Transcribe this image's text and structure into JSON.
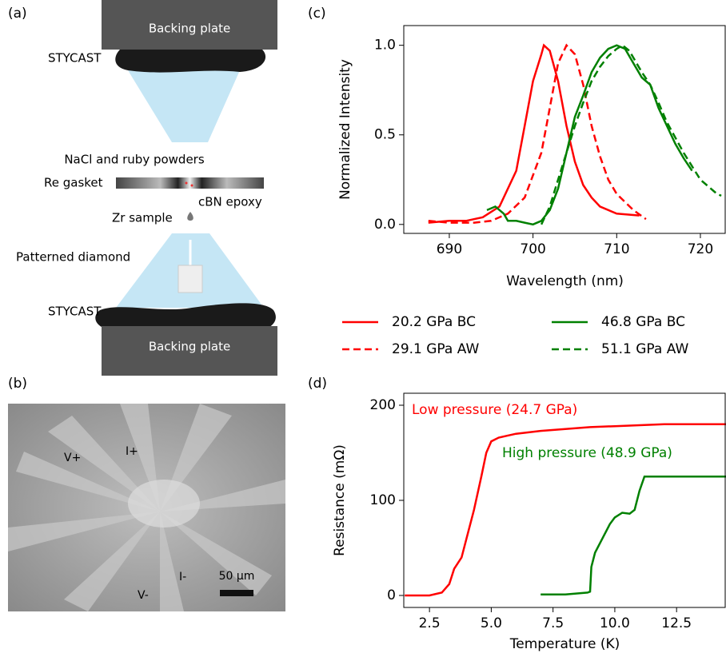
{
  "panel_a": {
    "label": "(a)",
    "top_plate": "Backing plate",
    "top_stycast": "STYCAST",
    "powders": "NaCl and ruby powders",
    "gasket": "Re gasket",
    "epoxy": "cBN epoxy",
    "sample": "Zr sample",
    "diamond": "Patterned diamond",
    "bottom_stycast": "STYCAST",
    "bottom_plate": "Backing plate"
  },
  "panel_b": {
    "label": "(b)",
    "leads": [
      "V+",
      "I+",
      "V-",
      "I-"
    ],
    "scale_bar": "50 μm"
  },
  "chart_data": [
    {
      "type": "line",
      "label": "(c)",
      "x_label": "Wavelength (nm)",
      "y_label": "Normalized Intensity",
      "xlim": [
        684.56,
        723.06
      ],
      "ylim": [
        -0.05,
        1.11
      ],
      "xticks": [
        690,
        700,
        710,
        720
      ],
      "yticks": [
        {
          "value": 0,
          "label": "0.0"
        },
        0.5,
        {
          "value": 1,
          "label": "1.0"
        }
      ],
      "legend": "below",
      "series": [
        {
          "name": "20.2 GPa BC",
          "color": "#ff0000",
          "dash": false,
          "x": [
            687.5,
            690,
            692,
            694,
            696,
            698,
            699,
            700,
            701,
            701.3,
            702,
            703,
            704,
            705,
            706,
            707,
            708,
            710,
            712.7
          ],
          "values": [
            0.01,
            0.02,
            0.02,
            0.04,
            0.1,
            0.3,
            0.55,
            0.8,
            0.95,
            1.0,
            0.97,
            0.8,
            0.55,
            0.35,
            0.22,
            0.15,
            0.1,
            0.06,
            0.05
          ]
        },
        {
          "name": "29.1 GPa AW",
          "color": "#ff0000",
          "dash": true,
          "x": [
            687.5,
            690,
            693,
            695,
            697,
            699,
            701,
            702,
            703,
            704,
            705,
            706,
            707,
            708,
            709,
            710,
            712,
            713.5
          ],
          "values": [
            0.02,
            0.01,
            0.01,
            0.02,
            0.06,
            0.15,
            0.4,
            0.65,
            0.9,
            1.0,
            0.95,
            0.78,
            0.55,
            0.38,
            0.25,
            0.17,
            0.08,
            0.03
          ]
        },
        {
          "name": "46.8 GPa BC",
          "color": "#008000",
          "dash": false,
          "x": [
            694.5,
            695.5,
            696.5,
            697,
            698,
            699,
            700,
            701,
            702,
            703,
            704,
            705,
            706,
            707,
            708,
            709,
            710,
            711,
            712,
            713,
            714,
            715,
            716,
            717,
            718,
            719
          ],
          "values": [
            0.08,
            0.1,
            0.06,
            0.02,
            0.02,
            0.01,
            0.0,
            0.02,
            0.08,
            0.2,
            0.4,
            0.6,
            0.72,
            0.85,
            0.93,
            0.98,
            1.0,
            0.98,
            0.9,
            0.82,
            0.78,
            0.65,
            0.55,
            0.45,
            0.37,
            0.3
          ]
        },
        {
          "name": "51.1 GPa AW",
          "color": "#008000",
          "dash": true,
          "x": [
            701,
            702,
            703,
            704,
            705,
            706,
            707,
            708,
            709,
            710,
            710.7,
            711.5,
            712,
            713,
            714,
            715,
            716,
            718,
            720,
            722,
            722.5
          ],
          "values": [
            0.0,
            0.1,
            0.25,
            0.4,
            0.55,
            0.68,
            0.8,
            0.88,
            0.94,
            0.98,
            1.0,
            0.97,
            0.93,
            0.85,
            0.78,
            0.68,
            0.57,
            0.4,
            0.25,
            0.17,
            0.16
          ]
        }
      ]
    },
    {
      "type": "line",
      "label": "(d)",
      "x_label": "Temperature (K)",
      "y_label": "Resistance (mΩ)",
      "xlim": [
        1.46,
        14.5
      ],
      "ylim": [
        -12.6,
        212.6
      ],
      "xticks": [
        2.5,
        {
          "value": 5,
          "label": "5.0"
        },
        7.5,
        {
          "value": 10,
          "label": "10.0"
        },
        12.5
      ],
      "yticks": [
        0,
        100,
        200
      ],
      "series": [
        {
          "name": "Low pressure (24.7 GPa)",
          "color": "#ff0000",
          "dash": false,
          "x": [
            1.5,
            2.5,
            3.0,
            3.3,
            3.5,
            3.8,
            4.0,
            4.3,
            4.6,
            4.8,
            5.0,
            5.3,
            6,
            7,
            8,
            9,
            10,
            11,
            12,
            14.5
          ],
          "values": [
            0,
            0,
            3,
            12,
            28,
            40,
            60,
            90,
            125,
            150,
            162,
            166,
            170,
            173,
            175,
            177,
            178,
            179,
            180,
            180
          ]
        },
        {
          "name": "High pressure (48.9 GPa)",
          "color": "#008000",
          "dash": false,
          "x": [
            7.0,
            8,
            8.9,
            9.0,
            9.05,
            9.2,
            9.5,
            9.8,
            10.0,
            10.3,
            10.6,
            10.8,
            11.0,
            11.2,
            14.5
          ],
          "values": [
            1,
            1,
            3,
            4,
            30,
            45,
            60,
            75,
            82,
            87,
            86,
            90,
            110,
            125,
            125
          ]
        }
      ]
    }
  ]
}
